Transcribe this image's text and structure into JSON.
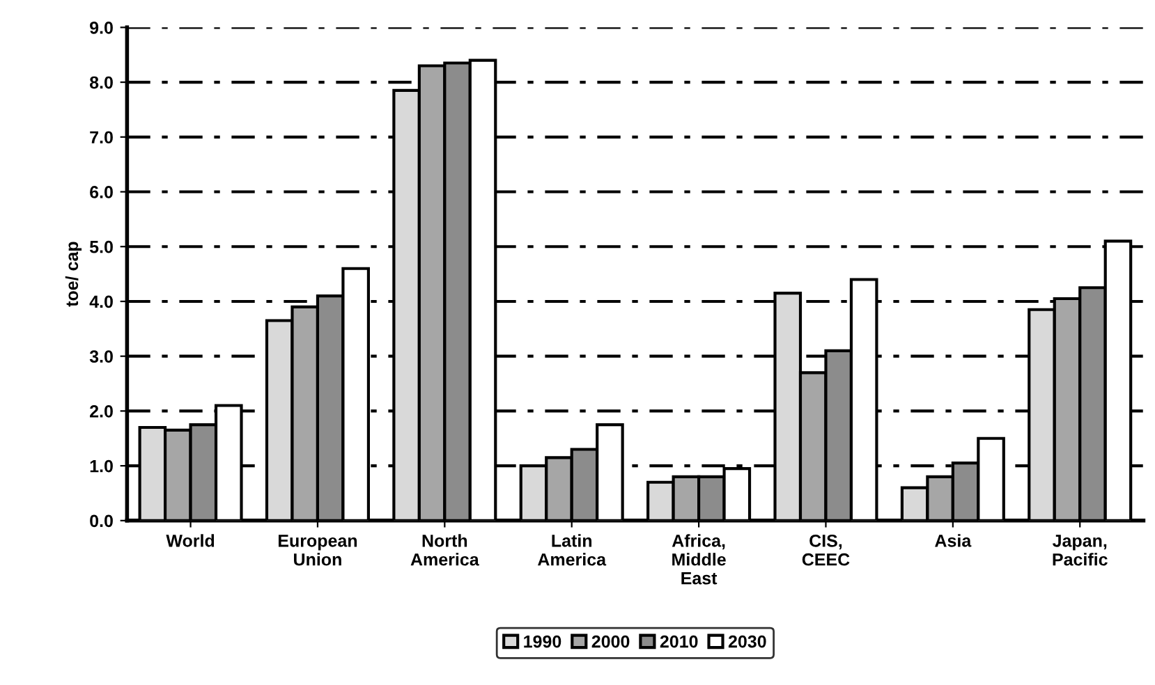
{
  "chart_data": {
    "type": "bar",
    "ylabel": "toe/ cap",
    "categories": [
      "World",
      "European\nUnion",
      "North\nAmerica",
      "Latin\nAmerica",
      "Africa,\nMiddle\nEast",
      "CIS,\nCEEC",
      "Asia",
      "Japan,\nPacific"
    ],
    "series": [
      {
        "name": "1990",
        "color": "#d9d9d9",
        "values": [
          1.7,
          3.65,
          7.85,
          1.0,
          0.7,
          4.15,
          0.6,
          3.85
        ]
      },
      {
        "name": "2000",
        "color": "#a6a6a6",
        "values": [
          1.65,
          3.9,
          8.3,
          1.15,
          0.8,
          2.7,
          0.8,
          4.05
        ]
      },
      {
        "name": "2010",
        "color": "#8c8c8c",
        "values": [
          1.75,
          4.1,
          8.35,
          1.3,
          0.8,
          3.1,
          1.05,
          4.25
        ]
      },
      {
        "name": "2030",
        "color": "#ffffff",
        "values": [
          2.1,
          4.6,
          8.4,
          1.75,
          0.95,
          4.4,
          1.5,
          5.1
        ]
      }
    ],
    "ylim": [
      0,
      9
    ],
    "yticks": [
      {
        "value": 0,
        "label": "0.0"
      },
      {
        "value": 1,
        "label": "1.0"
      },
      {
        "value": 2,
        "label": "2.0"
      },
      {
        "value": 3,
        "label": "3.0"
      },
      {
        "value": 4,
        "label": "4.0"
      },
      {
        "value": 5,
        "label": "5.0"
      },
      {
        "value": 6,
        "label": "6.0"
      },
      {
        "value": 7,
        "label": "7.0"
      },
      {
        "value": 8,
        "label": "8.0"
      },
      {
        "value": 9,
        "label": "9.0"
      }
    ],
    "grid": "y",
    "legend": "bottom"
  }
}
